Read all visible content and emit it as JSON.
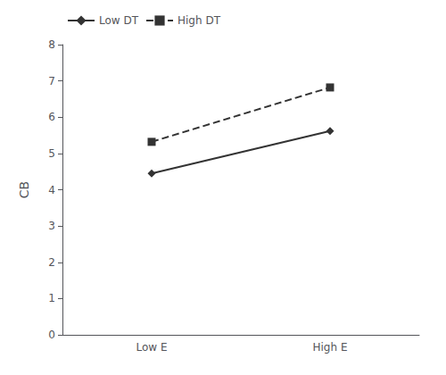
{
  "chart_data": {
    "type": "line",
    "categories": [
      "Low E",
      "High E"
    ],
    "series": [
      {
        "name": "Low DT",
        "color": "#333333",
        "values": [
          4.45,
          5.62
        ],
        "marker": "diamond",
        "line_style": "solid"
      },
      {
        "name": "High DT",
        "color": "#333333",
        "values": [
          5.32,
          6.82
        ],
        "marker": "square",
        "line_style": "dashed"
      }
    ],
    "ylabel": "CB",
    "ylim": [
      0,
      8
    ],
    "yticks": [
      0,
      1,
      2,
      3,
      4,
      5,
      6,
      7,
      8
    ],
    "grid": false,
    "legend": "upper left"
  }
}
